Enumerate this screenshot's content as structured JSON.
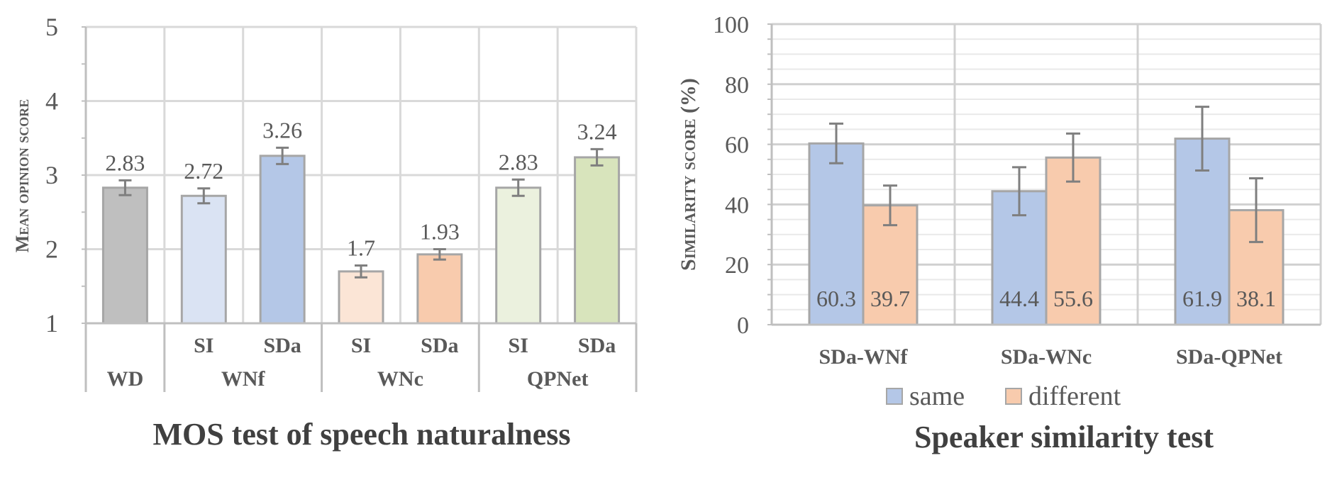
{
  "chart_data": [
    {
      "type": "bar",
      "title": "MOS test of speech naturalness",
      "ylabel": "Mean opinion score",
      "ylim": [
        1,
        5
      ],
      "yticks": [
        "1",
        "2",
        "3",
        "4",
        "5"
      ],
      "groups": [
        "WD",
        "WNf",
        "WNc",
        "QPNet"
      ],
      "categories": [
        "",
        "SI",
        "SDa",
        "SI",
        "SDa",
        "SI",
        "SDa"
      ],
      "values": [
        2.83,
        2.72,
        3.26,
        1.7,
        1.93,
        2.83,
        3.24
      ],
      "labels": [
        "2.83",
        "2.72",
        "3.26",
        "1.7",
        "1.93",
        "2.83",
        "3.24"
      ],
      "errors": [
        0.1,
        0.1,
        0.11,
        0.08,
        0.07,
        0.11,
        0.11
      ],
      "colors": [
        "#bfbfbf",
        "#dae3f3",
        "#b4c7e7",
        "#fbe5d6",
        "#f8cbad",
        "#ebf1de",
        "#d8e4bc"
      ],
      "grid": true
    },
    {
      "type": "bar",
      "title": "Speaker similarity test",
      "ylabel": "Similarity score (%)",
      "ylim": [
        0,
        100
      ],
      "yticks": [
        "0",
        "20",
        "40",
        "60",
        "80",
        "100"
      ],
      "categories": [
        "SDa-WNf",
        "SDa-WNc",
        "SDa-QPNet"
      ],
      "series": [
        {
          "name": "same",
          "values": [
            60.3,
            44.4,
            61.9
          ],
          "labels": [
            "60.3",
            "44.4",
            "61.9"
          ],
          "errors": [
            6.6,
            8.0,
            10.6
          ],
          "color": "#b4c7e7"
        },
        {
          "name": "different",
          "values": [
            39.7,
            55.6,
            38.1
          ],
          "labels": [
            "39.7",
            "55.6",
            "38.1"
          ],
          "errors": [
            6.6,
            8.0,
            10.6
          ],
          "color": "#f8cbad"
        }
      ],
      "legend": "bottom",
      "grid": true
    }
  ]
}
